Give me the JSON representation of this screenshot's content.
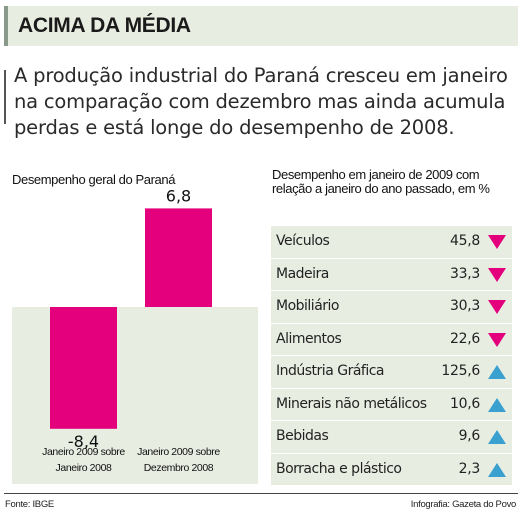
{
  "header": {
    "title": "ACIMA DA MÉDIA"
  },
  "lead": "A produção industrial do Paraná cresceu em janeiro na comparação com dezembro mas ainda acumula perdas e está longe do desempenho de 2008.",
  "colors": {
    "bar": "#e4007c",
    "header_bg": "#e8ede2",
    "up_arrow": "#3aa0d0",
    "down_arrow": "#e4007c"
  },
  "chart_data": [
    {
      "type": "bar",
      "title": "Desempenho geral do Paraná",
      "categories": [
        "Janeiro 2009 sobre Janeiro 2008",
        "Janeiro 2009 sobre Dezembro 2008"
      ],
      "category_lines": [
        [
          "Janeiro 2009 sobre",
          "Janeiro 2008"
        ],
        [
          "Janeiro 2009 sobre",
          "Dezembro 2008"
        ]
      ],
      "values": [
        -8.4,
        6.8
      ],
      "value_labels": [
        "-8,4",
        "6,8"
      ]
    },
    {
      "type": "table",
      "title": "Desempenho em janeiro de 2009 com relação a janeiro do ano passado, em %",
      "rows": [
        {
          "label": "Veículos",
          "value": "45,8",
          "direction": "down"
        },
        {
          "label": "Madeira",
          "value": "33,3",
          "direction": "down"
        },
        {
          "label": "Mobiliário",
          "value": "30,3",
          "direction": "down"
        },
        {
          "label": "Alimentos",
          "value": "22,6",
          "direction": "down"
        },
        {
          "label": "Indústria Gráfica",
          "value": "125,6",
          "direction": "up"
        },
        {
          "label": "Minerais não metálicos",
          "value": "10,6",
          "direction": "up"
        },
        {
          "label": "Bebidas",
          "value": "9,6",
          "direction": "up"
        },
        {
          "label": "Borracha e plástico",
          "value": "2,3",
          "direction": "up"
        }
      ]
    }
  ],
  "footer": {
    "source": "Fonte: IBGE",
    "credit": "Infografia: Gazeta do Povo"
  }
}
